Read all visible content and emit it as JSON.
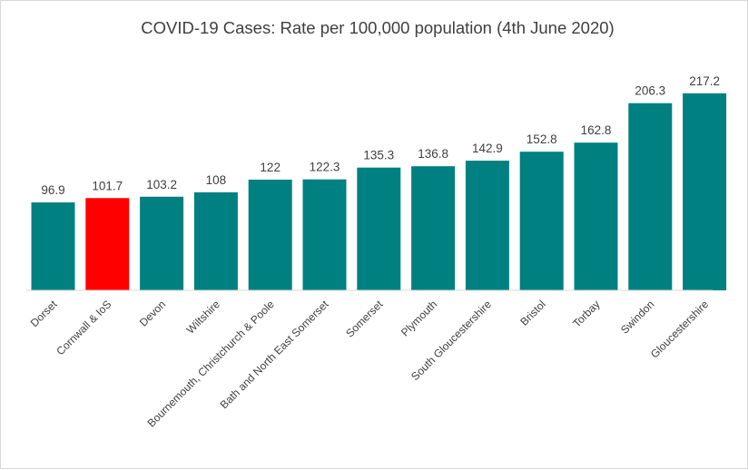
{
  "chart_data": {
    "type": "bar",
    "title": "COVID-19 Cases: Rate per 100,000 population (4th June 2020)",
    "categories": [
      "Dorset",
      "Cornwall & IoS",
      "Devon",
      "Wiltshire",
      "Bournemouth, Christchurch & Poole",
      "Bath and North East Somerset",
      "Somerset",
      "Plymouth",
      "South Gloucestershire",
      "Bristol",
      "Torbay",
      "Swindon",
      "Gloucestershire"
    ],
    "values": [
      96.9,
      101.7,
      103.2,
      108,
      122,
      122.3,
      135.3,
      136.8,
      142.9,
      152.8,
      162.8,
      206.3,
      217.2
    ],
    "value_labels": [
      "96.9",
      "101.7",
      "103.2",
      "108",
      "122",
      "122.3",
      "135.3",
      "136.8",
      "142.9",
      "152.8",
      "162.8",
      "206.3",
      "217.2"
    ],
    "xlabel": "",
    "ylabel": "",
    "ylim": [
      0,
      250
    ],
    "grid": false,
    "legend": "none",
    "colors": {
      "default_bar": "#008080",
      "highlight_bar": "#ff0000",
      "axis_line": "#d9d9d9",
      "text": "#404040"
    },
    "highlight_category": "Cornwall & IoS"
  }
}
